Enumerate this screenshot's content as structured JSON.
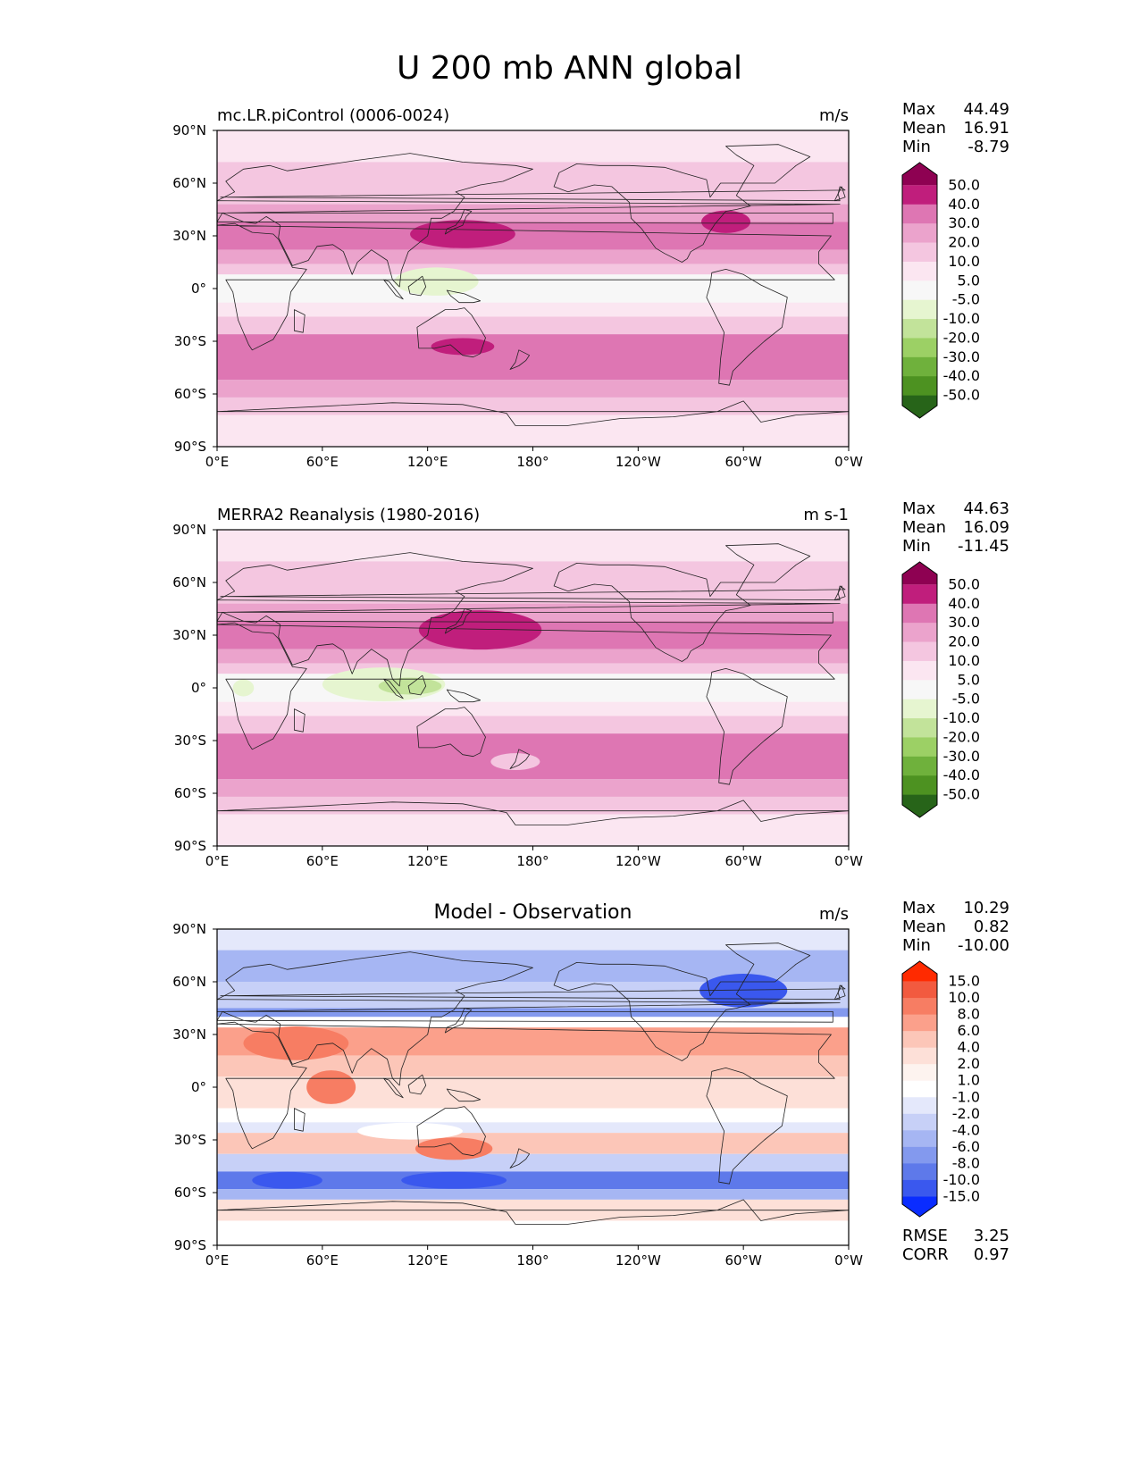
{
  "title": "U 200 mb ANN global",
  "axes": {
    "lat_ticks": [
      "90°N",
      "60°N",
      "30°N",
      "0°",
      "30°S",
      "60°S",
      "90°S"
    ],
    "lon_ticks": [
      "0°E",
      "60°E",
      "120°E",
      "180°",
      "120°W",
      "60°W",
      "0°W"
    ]
  },
  "colors": {
    "ocean_bg": "#f7f7f7",
    "coastline": "#222222",
    "pos_scale": [
      "#fbe6f1",
      "#f4c6e0",
      "#eba3cc",
      "#de76b3",
      "#c01e7c",
      "#8e0152"
    ],
    "neg_scale": [
      "#e6f5d0",
      "#c2e39a",
      "#9cd065",
      "#6fb13c",
      "#4d9221",
      "#276419"
    ],
    "diff_pos": [
      "#fde0d8",
      "#fcc6b8",
      "#fba08b",
      "#f77d63",
      "#f25a3f",
      "#ff2a00"
    ],
    "diff_neg": [
      "#e4e8fb",
      "#c7d0f7",
      "#a6b6f3",
      "#8399ee",
      "#5e79ea",
      "#3a58ee",
      "#0a2cff"
    ]
  },
  "panels": [
    {
      "id": "test",
      "title": "mc.LR.piControl (0006-0024)",
      "title_center": false,
      "units": "m/s",
      "stats": [
        {
          "label": "Max",
          "value": "44.49"
        },
        {
          "label": "Mean",
          "value": "16.91"
        },
        {
          "label": "Min",
          "value": "-8.79"
        }
      ],
      "colorbar": {
        "type": "field",
        "labels": [
          "50.0",
          "40.0",
          "30.0",
          "20.0",
          "10.0",
          "5.0",
          "-5.0",
          "-10.0",
          "-20.0",
          "-30.0",
          "-40.0",
          "-50.0"
        ]
      }
    },
    {
      "id": "ref",
      "title": "MERRA2 Reanalysis (1980-2016)",
      "title_center": false,
      "units": "m s-1",
      "stats": [
        {
          "label": "Max",
          "value": "44.63"
        },
        {
          "label": "Mean",
          "value": "16.09"
        },
        {
          "label": "Min",
          "value": "-11.45"
        }
      ],
      "colorbar": {
        "type": "field",
        "labels": [
          "50.0",
          "40.0",
          "30.0",
          "20.0",
          "10.0",
          "5.0",
          "-5.0",
          "-10.0",
          "-20.0",
          "-30.0",
          "-40.0",
          "-50.0"
        ]
      }
    },
    {
      "id": "diff",
      "title": "Model - Observation",
      "title_center": true,
      "units": "m/s",
      "stats": [
        {
          "label": "Max",
          "value": "10.29"
        },
        {
          "label": "Mean",
          "value": "0.82"
        },
        {
          "label": "Min",
          "value": "-10.00"
        }
      ],
      "colorbar": {
        "type": "diff",
        "labels": [
          "15.0",
          "10.0",
          "8.0",
          "6.0",
          "4.0",
          "2.0",
          "1.0",
          "-1.0",
          "-2.0",
          "-4.0",
          "-6.0",
          "-8.0",
          "-10.0",
          "-15.0"
        ]
      },
      "metrics": [
        {
          "label": "RMSE",
          "value": "3.25"
        },
        {
          "label": "CORR",
          "value": "0.97"
        }
      ]
    }
  ]
}
